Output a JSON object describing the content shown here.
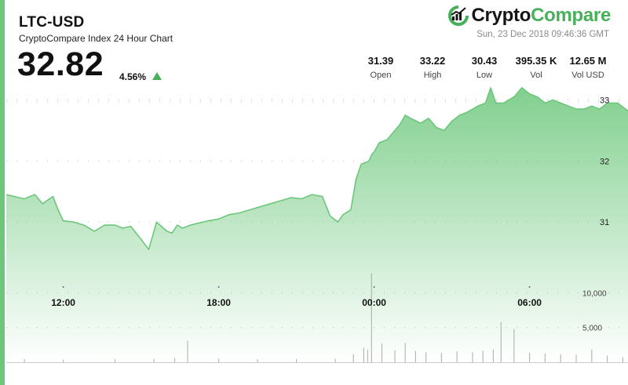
{
  "header": {
    "pair": "LTC-USD",
    "subtitle": "CryptoCompare Index 24 Hour Chart",
    "price": "32.82",
    "change": "4.56%",
    "change_direction": "up",
    "timestamp": "Sun, 23 Dec 2018 09:46:36 GMT"
  },
  "logo": {
    "part1": "Crypto",
    "part2": "Compare"
  },
  "stats": [
    {
      "value": "31.39",
      "label": "Open"
    },
    {
      "value": "33.22",
      "label": "High"
    },
    {
      "value": "30.43",
      "label": "Low"
    },
    {
      "value": "395.35 K",
      "label": "Vol"
    },
    {
      "value": "12.65 M",
      "label": "Vol USD"
    }
  ],
  "colors": {
    "accent": "#47b05a",
    "line": "#6cc77b",
    "fill_top": "#6cc77b",
    "volume": "#b8b8b8"
  },
  "chart_data": {
    "type": "area",
    "title": "",
    "x_tick_labels": [
      "12:00",
      "18:00",
      "00:00",
      "06:00"
    ],
    "x_tick_hours": [
      12,
      18,
      24,
      30
    ],
    "x_range_hours": [
      9.8,
      33.8
    ],
    "y_tick_labels": [
      "31",
      "32",
      "33"
    ],
    "y_ticks": [
      31,
      32,
      33
    ],
    "ylim": [
      30.45,
      33.25
    ],
    "volume_tick_labels": [
      "10,000",
      "5,000"
    ],
    "volume_ticks": [
      10000,
      5000
    ],
    "volume_max": 14000,
    "grid": "dotted horizontal",
    "series": [
      {
        "kind": "price",
        "x": [
          9.8,
          10.1,
          10.5,
          10.9,
          11.2,
          11.6,
          11.8,
          12.0,
          12.4,
          12.8,
          13.2,
          13.6,
          14.0,
          14.3,
          14.6,
          15.0,
          15.3,
          15.6,
          16.0,
          16.2,
          16.4,
          16.6,
          16.9,
          17.2,
          17.6,
          18.0,
          18.4,
          18.8,
          19.2,
          19.6,
          20.0,
          20.4,
          20.8,
          21.2,
          21.6,
          22.0,
          22.3,
          22.6,
          22.8,
          23.1,
          23.3,
          23.5,
          23.7,
          23.8,
          23.9,
          24.0,
          24.2,
          24.5,
          24.8,
          25.0,
          25.2,
          25.5,
          25.8,
          26.1,
          26.4,
          26.7,
          27.0,
          27.3,
          27.6,
          28.0,
          28.3,
          28.5,
          28.7,
          29.0,
          29.4,
          29.7,
          30.0,
          30.3,
          30.6,
          30.9,
          31.2,
          31.5,
          31.8,
          32.1,
          32.4,
          32.7,
          33.0,
          33.4,
          33.8
        ],
        "values": [
          31.45,
          31.42,
          31.38,
          31.45,
          31.3,
          31.42,
          31.2,
          31.02,
          31.0,
          30.95,
          30.85,
          30.95,
          30.95,
          30.9,
          30.93,
          30.72,
          30.55,
          31.0,
          30.85,
          30.82,
          30.95,
          30.9,
          30.95,
          30.98,
          31.02,
          31.05,
          31.12,
          31.15,
          31.2,
          31.25,
          31.3,
          31.35,
          31.4,
          31.38,
          31.45,
          31.42,
          31.1,
          31.0,
          31.12,
          31.2,
          31.7,
          31.95,
          31.98,
          32.0,
          32.1,
          32.15,
          32.3,
          32.35,
          32.5,
          32.6,
          32.75,
          32.68,
          32.62,
          32.7,
          32.55,
          32.5,
          32.65,
          32.75,
          32.8,
          32.9,
          32.95,
          33.2,
          32.95,
          32.95,
          33.05,
          33.2,
          33.1,
          33.05,
          32.95,
          33.0,
          32.95,
          32.9,
          32.85,
          32.85,
          32.9,
          32.85,
          32.95,
          32.95,
          32.82
        ]
      },
      {
        "kind": "volume",
        "x": [
          10.5,
          12.0,
          14.0,
          15.5,
          16.3,
          16.8,
          18.0,
          19.5,
          21.0,
          22.5,
          23.2,
          23.6,
          23.75,
          23.9,
          24.3,
          24.8,
          25.2,
          25.6,
          26.0,
          26.6,
          27.2,
          27.8,
          28.2,
          28.6,
          28.9,
          29.4,
          30.0,
          30.6,
          31.2,
          31.8,
          32.4,
          33.0,
          33.6
        ],
        "values": [
          450,
          380,
          420,
          480,
          600,
          3100,
          550,
          420,
          480,
          520,
          1150,
          2100,
          1800,
          12800,
          2700,
          1750,
          2800,
          1650,
          1450,
          1350,
          1550,
          1450,
          1650,
          1850,
          5800,
          4800,
          1350,
          1250,
          1150,
          1050,
          1850,
          950,
          750
        ]
      }
    ]
  }
}
